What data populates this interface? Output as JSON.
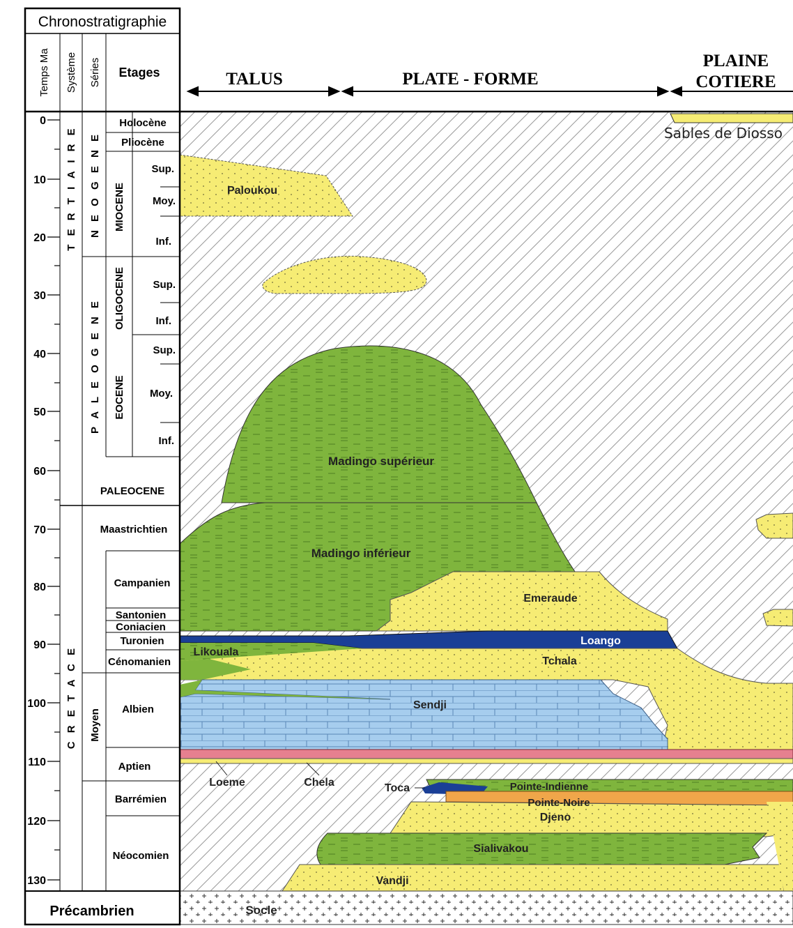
{
  "header": {
    "chrono_title": "Chronostratigraphie",
    "col_temps": "Temps Ma",
    "col_systeme": "Système",
    "col_series": "Séries",
    "col_etages": "Etages",
    "talus": "TALUS",
    "plate_forme": "PLATE - FORME",
    "plaine_line1": "PLAINE",
    "plaine_line2": "COTIERE"
  },
  "time_ticks": [
    "0",
    "10",
    "20",
    "30",
    "40",
    "50",
    "60",
    "70",
    "80",
    "90",
    "100",
    "110",
    "120",
    "130"
  ],
  "systems": {
    "neogene": "N E O G E N E",
    "paleogene": "P A L E O G E N E",
    "tertiaire": "T E R T I A I R E",
    "cretace": "C R E T A C E",
    "moyen": "Moyen"
  },
  "epochs": {
    "miocene": "MIOCENE",
    "oligocene": "OLIGOCENE",
    "eocene": "EOCENE",
    "paleocene": "PALEOCENE"
  },
  "stages": {
    "holocene": "Holocène",
    "pliocene": "Pliocène",
    "sup1": "Sup.",
    "moy1": "Moy.",
    "inf1": "Inf.",
    "sup2": "Sup.",
    "inf2": "Inf.",
    "sup3": "Sup.",
    "moy3": "Moy.",
    "inf3": "Inf.",
    "maastrichtien": "Maastrichtien",
    "campanien": "Campanien",
    "santonien": "Santonien",
    "coniacien": "Coniacien",
    "turonien": "Turonien",
    "cenomanien": "Cénomanien",
    "albien": "Albien",
    "aptien": "Aptien",
    "barremien": "Barrémien",
    "neocomien": "Néocomien"
  },
  "precambrien": "Précambrien",
  "formations": {
    "sables_diosso": "Sables de Diosso",
    "paloukou": "Paloukou",
    "madingo_sup": "Madingo  supérieur",
    "madingo_inf": "Madingo  inférieur",
    "emeraude": "Emeraude",
    "loango": "Loango",
    "likouala": "Likouala",
    "tchala": "Tchala",
    "sendji": "Sendji",
    "loeme": "Loeme",
    "chela": "Chela",
    "toca": "Toca",
    "pointe_indienne": "Pointe-Indienne",
    "pointe_noire": "Pointe-Noire",
    "djeno": "Djeno",
    "sialivakou": "Sialivakou",
    "vandji": "Vandji",
    "socle": "Socle"
  },
  "colors": {
    "yellow": "#f6ec74",
    "green": "#7fb53d",
    "blue": "#a6cdee",
    "navy": "#1a3f96",
    "pink": "#e6808f",
    "orange": "#f0a64a"
  }
}
